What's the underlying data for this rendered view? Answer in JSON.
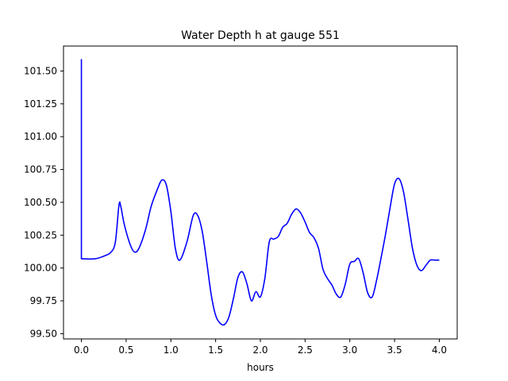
{
  "chart_data": {
    "type": "line",
    "title": "Water Depth h at gauge 551",
    "xlabel": "hours",
    "ylabel": "",
    "xlim": [
      -0.2,
      4.2
    ],
    "ylim": [
      99.46,
      101.69
    ],
    "xticks": [
      0.0,
      0.5,
      1.0,
      1.5,
      2.0,
      2.5,
      3.0,
      3.5,
      4.0
    ],
    "xtick_labels": [
      "0.0",
      "0.5",
      "1.0",
      "1.5",
      "2.0",
      "2.5",
      "3.0",
      "3.5",
      "4.0"
    ],
    "yticks": [
      99.5,
      99.75,
      100.0,
      100.25,
      100.5,
      100.75,
      101.0,
      101.25,
      101.5
    ],
    "ytick_labels": [
      "99.50",
      "99.75",
      "100.00",
      "100.25",
      "100.50",
      "100.75",
      "101.00",
      "101.25",
      "101.50"
    ],
    "grid": false,
    "series": [
      {
        "color": "#0000ff",
        "x": [
          0.0,
          0.0,
          0.02,
          0.15,
          0.25,
          0.33,
          0.38,
          0.42,
          0.44,
          0.48,
          0.55,
          0.6,
          0.65,
          0.72,
          0.78,
          0.85,
          0.9,
          0.95,
          1.0,
          1.05,
          1.1,
          1.18,
          1.25,
          1.3,
          1.35,
          1.4,
          1.45,
          1.5,
          1.55,
          1.6,
          1.65,
          1.7,
          1.75,
          1.8,
          1.85,
          1.9,
          1.95,
          2.0,
          2.05,
          2.1,
          2.15,
          2.2,
          2.25,
          2.3,
          2.35,
          2.4,
          2.45,
          2.5,
          2.55,
          2.6,
          2.65,
          2.7,
          2.75,
          2.8,
          2.85,
          2.9,
          2.95,
          3.0,
          3.05,
          3.1,
          3.15,
          3.2,
          3.25,
          3.3,
          3.35,
          3.4,
          3.45,
          3.5,
          3.55,
          3.6,
          3.65,
          3.7,
          3.75,
          3.8,
          3.85,
          3.9,
          3.95,
          4.0
        ],
        "y": [
          101.59,
          100.07,
          100.07,
          100.07,
          100.09,
          100.12,
          100.2,
          100.48,
          100.47,
          100.33,
          100.17,
          100.12,
          100.16,
          100.3,
          100.47,
          100.6,
          100.67,
          100.63,
          100.43,
          100.15,
          100.06,
          100.2,
          100.4,
          100.4,
          100.28,
          100.05,
          99.8,
          99.64,
          99.58,
          99.57,
          99.63,
          99.77,
          99.93,
          99.97,
          99.88,
          99.75,
          99.82,
          99.78,
          99.92,
          100.2,
          100.22,
          100.24,
          100.31,
          100.34,
          100.41,
          100.45,
          100.42,
          100.35,
          100.27,
          100.23,
          100.15,
          99.99,
          99.92,
          99.87,
          99.8,
          99.78,
          99.88,
          100.03,
          100.05,
          100.07,
          99.96,
          99.81,
          99.78,
          99.91,
          100.08,
          100.26,
          100.46,
          100.64,
          100.68,
          100.58,
          100.37,
          100.15,
          100.02,
          99.98,
          100.02,
          100.06,
          100.06,
          100.06
        ]
      }
    ]
  }
}
